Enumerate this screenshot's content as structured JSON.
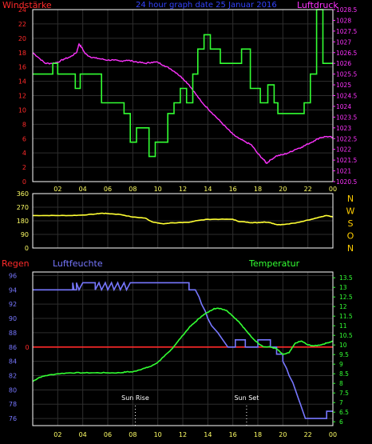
{
  "colors": {
    "background": "#000000",
    "frame": "#ffffff",
    "grid": "#2e2e2e",
    "wind_speed": "#ff2a2a",
    "wind_line": "#33ff33",
    "pressure": "#ff33ff",
    "direction": "#ffff33",
    "compass": "#ffcc00",
    "rain": "#ff2a2a",
    "humidity": "#7777ff",
    "temperature": "#33ff33",
    "pink_axis": "#ff33ff",
    "green_axis": "#33ff33",
    "yellow_axis": "#ffff66",
    "blue_axis": "#7777ff",
    "title": "#3344ff"
  },
  "chart_data": [
    {
      "type": "line",
      "title": "24 hour graph date  25 Januar 2016",
      "left_axis_label": "Windstärke",
      "right_axis_label": "Luftdruck",
      "x_tick_labels": [
        "02",
        "04",
        "06",
        "08",
        "10",
        "12",
        "14",
        "16",
        "18",
        "20",
        "22",
        "00"
      ],
      "x_range": [
        0,
        24
      ],
      "y_left_ticks": [
        0,
        2,
        4,
        6,
        8,
        10,
        12,
        14,
        16,
        18,
        20,
        22,
        24
      ],
      "y_left_range": [
        0,
        24
      ],
      "y_right_ticks": [
        "1020.5",
        "1021",
        "1021.5",
        "1022",
        "1022.5",
        "1023",
        "1023.5",
        "1024",
        "1024.5",
        "1025",
        "1025.5",
        "1026",
        "1026.5",
        "1027",
        "1027.5",
        "1028",
        "1028.5"
      ],
      "y_right_range": [
        1020.5,
        1028.5
      ],
      "series": [
        {
          "name": "Windstärke",
          "step": true,
          "points": [
            [
              0,
              15
            ],
            [
              1.6,
              15
            ],
            [
              1.6,
              16.5
            ],
            [
              2,
              16.5
            ],
            [
              2,
              15
            ],
            [
              3.4,
              15
            ],
            [
              3.4,
              13
            ],
            [
              3.8,
              13
            ],
            [
              3.8,
              15
            ],
            [
              5.5,
              15
            ],
            [
              5.5,
              11
            ],
            [
              7.3,
              11
            ],
            [
              7.3,
              9.5
            ],
            [
              7.8,
              9.5
            ],
            [
              7.8,
              5.5
            ],
            [
              8.3,
              5.5
            ],
            [
              8.3,
              7.5
            ],
            [
              9.3,
              7.5
            ],
            [
              9.3,
              3.5
            ],
            [
              9.8,
              3.5
            ],
            [
              9.8,
              5.5
            ],
            [
              10.8,
              5.5
            ],
            [
              10.8,
              9.5
            ],
            [
              11.3,
              9.5
            ],
            [
              11.3,
              11
            ],
            [
              11.8,
              11
            ],
            [
              11.8,
              13
            ],
            [
              12.3,
              13
            ],
            [
              12.3,
              11
            ],
            [
              12.8,
              11
            ],
            [
              12.8,
              15
            ],
            [
              13.2,
              15
            ],
            [
              13.2,
              18.5
            ],
            [
              13.7,
              18.5
            ],
            [
              13.7,
              20.5
            ],
            [
              14.2,
              20.5
            ],
            [
              14.2,
              18.5
            ],
            [
              15,
              18.5
            ],
            [
              15,
              16.5
            ],
            [
              16.7,
              16.5
            ],
            [
              16.7,
              18.5
            ],
            [
              17.4,
              18.5
            ],
            [
              17.4,
              13
            ],
            [
              18.2,
              13
            ],
            [
              18.2,
              11
            ],
            [
              18.8,
              11
            ],
            [
              18.8,
              13.5
            ],
            [
              19.3,
              13.5
            ],
            [
              19.3,
              11
            ],
            [
              19.6,
              11
            ],
            [
              19.6,
              9.5
            ],
            [
              21.7,
              9.5
            ],
            [
              21.7,
              11
            ],
            [
              22.2,
              11
            ],
            [
              22.2,
              15
            ],
            [
              22.7,
              15
            ],
            [
              22.7,
              24
            ],
            [
              23.2,
              24
            ],
            [
              23.2,
              16.5
            ],
            [
              24,
              16.5
            ]
          ]
        },
        {
          "name": "Luftdruck",
          "points": [
            [
              0,
              1026.5
            ],
            [
              0.5,
              1026.25
            ],
            [
              1,
              1026.0
            ],
            [
              1.5,
              1026.0
            ],
            [
              2,
              1026.05
            ],
            [
              2.5,
              1026.2
            ],
            [
              3,
              1026.3
            ],
            [
              3.5,
              1026.5
            ],
            [
              3.7,
              1026.9
            ],
            [
              3.9,
              1026.75
            ],
            [
              4.2,
              1026.45
            ],
            [
              4.6,
              1026.3
            ],
            [
              5,
              1026.25
            ],
            [
              5.5,
              1026.2
            ],
            [
              6,
              1026.15
            ],
            [
              6.5,
              1026.15
            ],
            [
              7,
              1026.1
            ],
            [
              7.5,
              1026.15
            ],
            [
              8,
              1026.1
            ],
            [
              8.5,
              1026.05
            ],
            [
              9,
              1026.0
            ],
            [
              9.5,
              1026.05
            ],
            [
              10,
              1026.05
            ],
            [
              10.5,
              1025.9
            ],
            [
              11,
              1025.75
            ],
            [
              11.5,
              1025.55
            ],
            [
              12,
              1025.3
            ],
            [
              12.5,
              1025.0
            ],
            [
              13,
              1024.6
            ],
            [
              13.5,
              1024.2
            ],
            [
              14,
              1023.9
            ],
            [
              14.5,
              1023.6
            ],
            [
              15,
              1023.3
            ],
            [
              15.5,
              1023.0
            ],
            [
              16,
              1022.7
            ],
            [
              16.5,
              1022.5
            ],
            [
              17,
              1022.35
            ],
            [
              17.5,
              1022.2
            ],
            [
              18,
              1021.8
            ],
            [
              18.5,
              1021.5
            ],
            [
              18.7,
              1021.35
            ],
            [
              19,
              1021.5
            ],
            [
              19.5,
              1021.7
            ],
            [
              20,
              1021.75
            ],
            [
              20.5,
              1021.85
            ],
            [
              21,
              1022.0
            ],
            [
              21.5,
              1022.1
            ],
            [
              22,
              1022.25
            ],
            [
              22.5,
              1022.4
            ],
            [
              23,
              1022.55
            ],
            [
              23.5,
              1022.6
            ],
            [
              24,
              1022.55
            ]
          ]
        }
      ]
    },
    {
      "type": "line",
      "title": "",
      "x_range": [
        0,
        24
      ],
      "y_ticks": [
        0,
        90,
        180,
        270,
        360
      ],
      "y_range": [
        0,
        360
      ],
      "compass_labels": [
        "N",
        "W",
        "S",
        "O",
        "N"
      ],
      "series": [
        {
          "name": "",
          "points": [
            [
              0,
              215
            ],
            [
              1,
              215
            ],
            [
              2,
              215
            ],
            [
              3,
              215
            ],
            [
              4,
              218
            ],
            [
              5,
              225
            ],
            [
              5.5,
              230
            ],
            [
              6,
              228
            ],
            [
              7,
              222
            ],
            [
              8,
              205
            ],
            [
              9,
              198
            ],
            [
              9.5,
              175
            ],
            [
              10,
              165
            ],
            [
              10.5,
              160
            ],
            [
              11,
              166
            ],
            [
              12,
              168
            ],
            [
              12.5,
              170
            ],
            [
              13,
              180
            ],
            [
              14,
              190
            ],
            [
              15,
              190
            ],
            [
              16,
              190
            ],
            [
              16.5,
              175
            ],
            [
              17,
              172
            ],
            [
              17.5,
              168
            ],
            [
              18,
              168
            ],
            [
              18.5,
              172
            ],
            [
              19,
              168
            ],
            [
              19.5,
              155
            ],
            [
              20,
              155
            ],
            [
              21,
              165
            ],
            [
              22,
              185
            ],
            [
              22.5,
              195
            ],
            [
              23,
              205
            ],
            [
              23.5,
              215
            ],
            [
              24,
              205
            ]
          ]
        }
      ]
    },
    {
      "type": "line",
      "title": "",
      "rain_label": "Regen",
      "humidity_label": "Luftfeuchte",
      "temperature_label": "Temperatur",
      "x_range": [
        0,
        24
      ],
      "rain_tick": "0",
      "y_left_ticks": [
        76,
        78,
        80,
        82,
        84,
        86,
        88,
        90,
        92,
        94,
        96
      ],
      "y_left_range": [
        75,
        96.5
      ],
      "y_right_ticks": [
        "6",
        "6.5",
        "7",
        "7.5",
        "8",
        "8.5",
        "9",
        "9.5",
        "10",
        "10.5",
        "11",
        "11.5",
        "12",
        "12.5",
        "13",
        "13.5"
      ],
      "y_right_range": [
        5.8,
        13.8
      ],
      "annotations": [
        {
          "label": "Sun Rise",
          "x": 8.2
        },
        {
          "label": "Sun Set",
          "x": 17.1
        }
      ],
      "series": [
        {
          "name": "Luftfeuchte",
          "step": true,
          "points": [
            [
              0,
              94
            ],
            [
              3.2,
              94
            ],
            [
              3.2,
              95
            ],
            [
              3.3,
              94
            ],
            [
              3.5,
              94
            ],
            [
              3.5,
              95
            ],
            [
              3.7,
              94
            ],
            [
              4,
              95
            ],
            [
              5,
              95
            ],
            [
              5,
              94
            ],
            [
              5.3,
              95
            ],
            [
              5.5,
              94
            ],
            [
              5.8,
              95
            ],
            [
              6,
              94
            ],
            [
              6.3,
              95
            ],
            [
              6.5,
              94
            ],
            [
              6.8,
              95
            ],
            [
              7,
              94
            ],
            [
              7.3,
              95
            ],
            [
              7.5,
              94
            ],
            [
              7.8,
              95
            ],
            [
              12.5,
              95
            ],
            [
              12.5,
              94
            ],
            [
              13,
              94
            ],
            [
              13.3,
              93
            ],
            [
              13.5,
              92
            ],
            [
              13.8,
              91
            ],
            [
              14,
              90
            ],
            [
              14.3,
              89
            ],
            [
              14.8,
              88
            ],
            [
              15.2,
              87
            ],
            [
              15.6,
              86
            ],
            [
              16.2,
              86
            ],
            [
              16.2,
              87
            ],
            [
              17,
              87
            ],
            [
              17,
              86
            ],
            [
              18,
              86
            ],
            [
              18,
              87
            ],
            [
              19,
              87
            ],
            [
              19,
              86
            ],
            [
              19.5,
              86
            ],
            [
              19.5,
              85
            ],
            [
              20,
              85
            ],
            [
              20,
              84
            ],
            [
              20.3,
              83
            ],
            [
              20.5,
              82
            ],
            [
              20.8,
              81
            ],
            [
              21,
              80
            ],
            [
              21.2,
              79
            ],
            [
              21.4,
              78
            ],
            [
              21.6,
              77
            ],
            [
              21.8,
              76
            ],
            [
              23.5,
              76
            ],
            [
              23.5,
              77
            ],
            [
              24,
              77
            ]
          ]
        },
        {
          "name": "Temperatur",
          "points": [
            [
              0,
              8.1
            ],
            [
              0.5,
              8.3
            ],
            [
              1,
              8.4
            ],
            [
              2,
              8.5
            ],
            [
              3,
              8.55
            ],
            [
              4,
              8.55
            ],
            [
              5,
              8.55
            ],
            [
              6,
              8.55
            ],
            [
              7,
              8.55
            ],
            [
              7.5,
              8.6
            ],
            [
              8,
              8.6
            ],
            [
              8.5,
              8.7
            ],
            [
              9,
              8.8
            ],
            [
              9.5,
              8.9
            ],
            [
              10,
              9.1
            ],
            [
              10.5,
              9.4
            ],
            [
              11,
              9.7
            ],
            [
              11.5,
              10.1
            ],
            [
              12,
              10.5
            ],
            [
              12.5,
              10.9
            ],
            [
              13,
              11.2
            ],
            [
              13.5,
              11.5
            ],
            [
              14,
              11.7
            ],
            [
              14.5,
              11.9
            ],
            [
              15,
              11.9
            ],
            [
              15.5,
              11.8
            ],
            [
              16,
              11.5
            ],
            [
              16.5,
              11.2
            ],
            [
              17,
              10.8
            ],
            [
              17.5,
              10.4
            ],
            [
              18,
              10.1
            ],
            [
              18.5,
              9.9
            ],
            [
              19,
              9.9
            ],
            [
              19.5,
              9.8
            ],
            [
              20,
              9.5
            ],
            [
              20.5,
              9.6
            ],
            [
              21,
              10.1
            ],
            [
              21.5,
              10.2
            ],
            [
              22,
              10.0
            ],
            [
              22.5,
              9.95
            ],
            [
              23,
              10.0
            ],
            [
              23.5,
              10.1
            ],
            [
              24,
              10.2
            ]
          ]
        }
      ]
    }
  ]
}
